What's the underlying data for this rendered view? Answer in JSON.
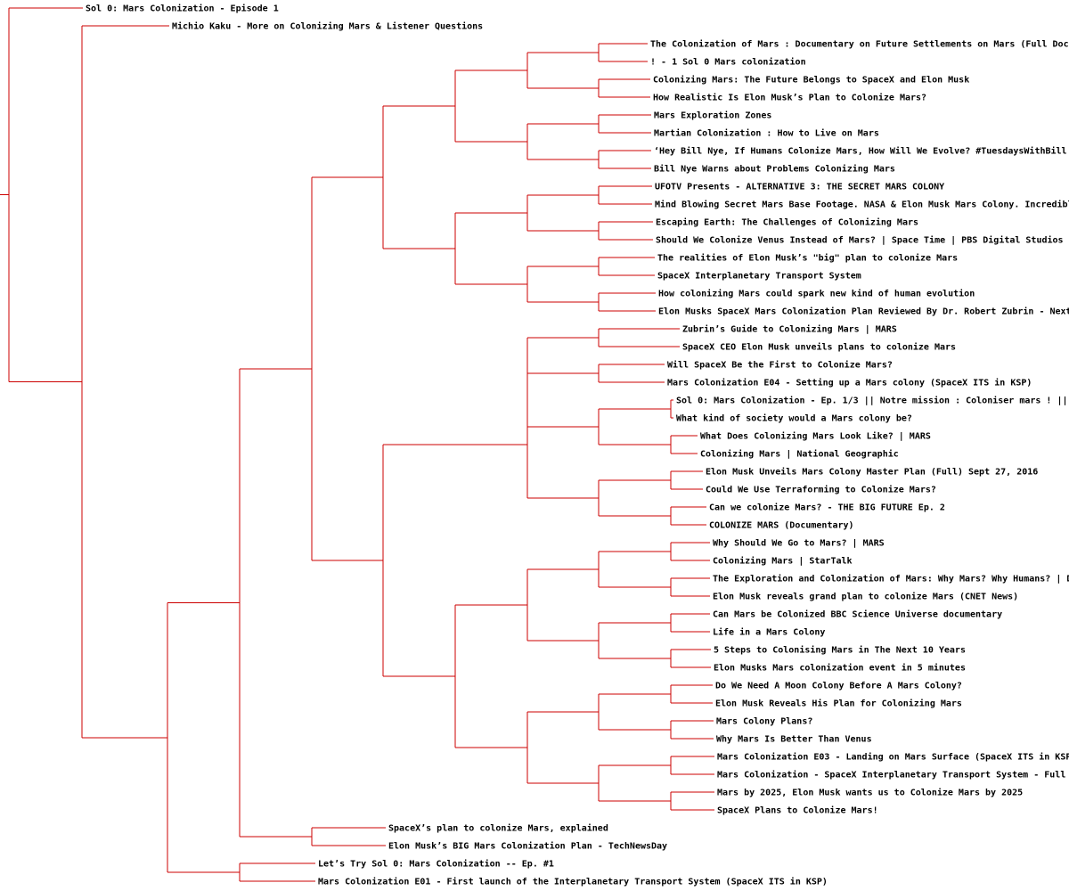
{
  "line_color": "#cc0000",
  "text_color": "#000000",
  "leaves": [
    "Sol 0: Mars Colonization -  Episode 1",
    "Michio Kaku - More on Colonizing Mars & Listener Questions",
    "The Colonization of Mars : Documentary on Future Settlements on Mars (Full Docu",
    "! - 1 Sol 0 Mars colonization",
    "Colonizing Mars: The Future Belongs to SpaceX and Elon Musk",
    "How Realistic Is Elon Musk’s Plan to Colonize Mars?",
    "Mars Exploration Zones",
    "Martian Colonization : How to Live on Mars",
    "‘Hey Bill Nye, If Humans Colonize Mars, How Will We Evolve? #TuesdaysWithBill",
    "Bill Nye Warns about Problems Colonizing Mars",
    "UFOTV Presents - ALTERNATIVE 3: THE SECRET MARS COLONY",
    "Mind Blowing Secret Mars Base Footage. NASA & Elon Musk Mars Colony. Incredibl",
    "Escaping Earth: The Challenges of Colonizing Mars",
    "Should We Colonize Venus Instead of Mars? | Space Time | PBS Digital Studios",
    "The realities of Elon Musk’s \"big\" plan to colonize Mars",
    "SpaceX Interplanetary Transport System",
    "How colonizing Mars could spark new kind of human evolution",
    "Elon Musks SpaceX Mars Colonization Plan Reviewed By Dr. Robert Zubrin - Next",
    "Zubrin’s Guide to Colonizing Mars | MARS",
    "SpaceX CEO Elon Musk unveils plans to colonize Mars",
    "Will SpaceX Be the First to Colonize Mars?",
    "Mars Colonization E04 - Setting up a Mars colony (SpaceX ITS in KSP)",
    "Sol 0: Mars Colonization - Ep. 1/3 || Notre mission : Coloniser mars ! ||",
    "What kind of society would a Mars colony be?",
    "What Does Colonizing Mars Look Like? | MARS",
    "Colonizing Mars | National Geographic",
    "Elon Musk Unveils Mars Colony Master Plan (Full) Sept 27, 2016",
    "Could We Use Terraforming to Colonize Mars?",
    "Can we colonize Mars? - THE BIG FUTURE Ep. 2",
    "COLONIZE MARS (Documentary)",
    "Why Should We Go to Mars? | MARS",
    "Colonizing Mars | StarTalk",
    "The Exploration and Colonization of Mars: Why Mars? Why Humans? | D",
    "Elon Musk reveals grand plan to colonize Mars (CNET News)",
    "Can Mars be Colonized  BBC Science Universe documentary",
    "Life in a Mars Colony",
    "5 Steps to Colonising Mars in The Next 10 Years",
    "Elon Musks Mars colonization event in 5 minutes",
    "Do We Need A Moon Colony Before A Mars Colony?",
    "Elon Musk Reveals His Plan for Colonizing Mars",
    "Mars Colony Plans?",
    "Why Mars Is Better Than Venus",
    "Mars Colonization E03 - Landing on Mars Surface (SpaceX ITS in KSP",
    "Mars Colonization - SpaceX Interplanetary Transport System - Full ",
    "Mars by 2025, Elon Musk wants us to Colonize Mars by 2025",
    "SpaceX Plans to Colonize Mars!",
    "SpaceX’s plan to colonize Mars, explained",
    "Elon Musk’s BIG Mars Colonization Plan - TechNewsDay",
    "Let’s Try Sol 0: Mars Colonization -- Ep. #1",
    "Mars Colonization E01 - First launch of the Interplanetary Transport System (SpaceX ITS in KSP)"
  ]
}
